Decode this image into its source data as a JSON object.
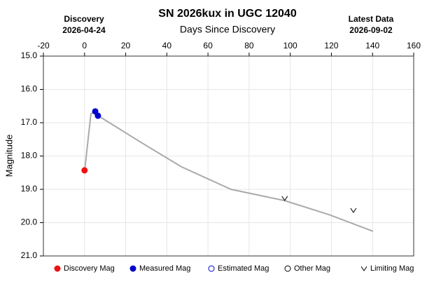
{
  "chart_data": {
    "type": "line",
    "title": "SN 2026kux in UGC 12040",
    "xlabel": "Days Since Discovery",
    "ylabel": "Magnitude",
    "discovery_label": "Discovery",
    "discovery_date": "2026-04-24",
    "latest_label": "Latest Data",
    "latest_date": "2026-09-02",
    "xlim": [
      -20,
      160
    ],
    "xticks": [
      -20,
      0,
      20,
      40,
      60,
      80,
      100,
      120,
      140,
      160
    ],
    "ylim": [
      15.0,
      21.0
    ],
    "invert_y": true,
    "yticks": [
      {
        "value": 15,
        "label": "15.0"
      },
      {
        "value": 16,
        "label": "16.0"
      },
      {
        "value": 17,
        "label": "17.0"
      },
      {
        "value": 18,
        "label": "18.0"
      },
      {
        "value": 19,
        "label": "19.0"
      },
      {
        "value": 20,
        "label": "20.0"
      },
      {
        "value": 21,
        "label": "21.0"
      }
    ],
    "grid": true,
    "series": [
      {
        "color": "#aaaaaa",
        "marker": "line",
        "x": [
          0.2,
          3.1,
          4.5,
          6.9,
          26.9,
          47.3,
          71.2,
          97.3,
          118.8,
          140.2
        ],
        "values": [
          18.36,
          16.73,
          16.69,
          16.8,
          17.57,
          18.33,
          19.0,
          19.34,
          19.76,
          20.26
        ]
      },
      {
        "name": "Discovery Mag",
        "color": "#ee1111",
        "marker": "filled",
        "x": [
          0
        ],
        "values": [
          18.43
        ]
      },
      {
        "name": "Measured Mag",
        "color": "#0000cc",
        "marker": "filled",
        "x": [
          5.2,
          6.5
        ],
        "values": [
          16.66,
          16.79
        ]
      },
      {
        "name": "Estimated Mag",
        "color": "#0000cc",
        "marker": "hollow",
        "x": [],
        "values": []
      },
      {
        "name": "Other Mag",
        "color": "#000000",
        "marker": "hollow",
        "x": [],
        "values": []
      },
      {
        "name": "Limiting Mag",
        "color": "#000000",
        "marker": "v",
        "x": [
          97.3,
          130.7
        ],
        "values": [
          19.27,
          19.63
        ]
      }
    ]
  }
}
